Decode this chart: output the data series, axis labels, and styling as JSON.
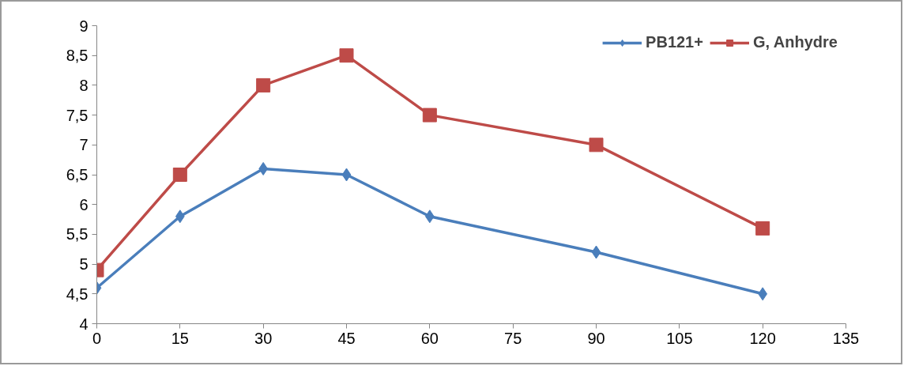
{
  "chart_data": {
    "type": "line",
    "x": [
      0,
      15,
      30,
      45,
      60,
      90,
      120
    ],
    "series": [
      {
        "name": "PB121+",
        "color": "#4a7ebb",
        "marker": "diamond",
        "values": [
          4.6,
          5.8,
          6.6,
          6.5,
          5.8,
          5.2,
          4.5
        ]
      },
      {
        "name": "G, Anhydre",
        "color": "#be4b48",
        "marker": "square",
        "values": [
          4.9,
          6.5,
          8.0,
          8.5,
          7.5,
          7.0,
          5.6
        ]
      }
    ],
    "xlim": [
      0,
      135
    ],
    "xticks": [
      0,
      15,
      30,
      45,
      60,
      75,
      90,
      105,
      120,
      135
    ],
    "ylim": [
      4,
      9
    ],
    "yticks": [
      4,
      {
        "value": 4.5,
        "label": "4,5"
      },
      5,
      {
        "value": 5.5,
        "label": "5,5"
      },
      6,
      {
        "value": 6.5,
        "label": "6,5"
      },
      7,
      {
        "value": 7.5,
        "label": "7,5"
      },
      8,
      {
        "value": 8.5,
        "label": "8,5"
      },
      9
    ],
    "grid": false,
    "legend": "top right",
    "line_style": "solid"
  }
}
